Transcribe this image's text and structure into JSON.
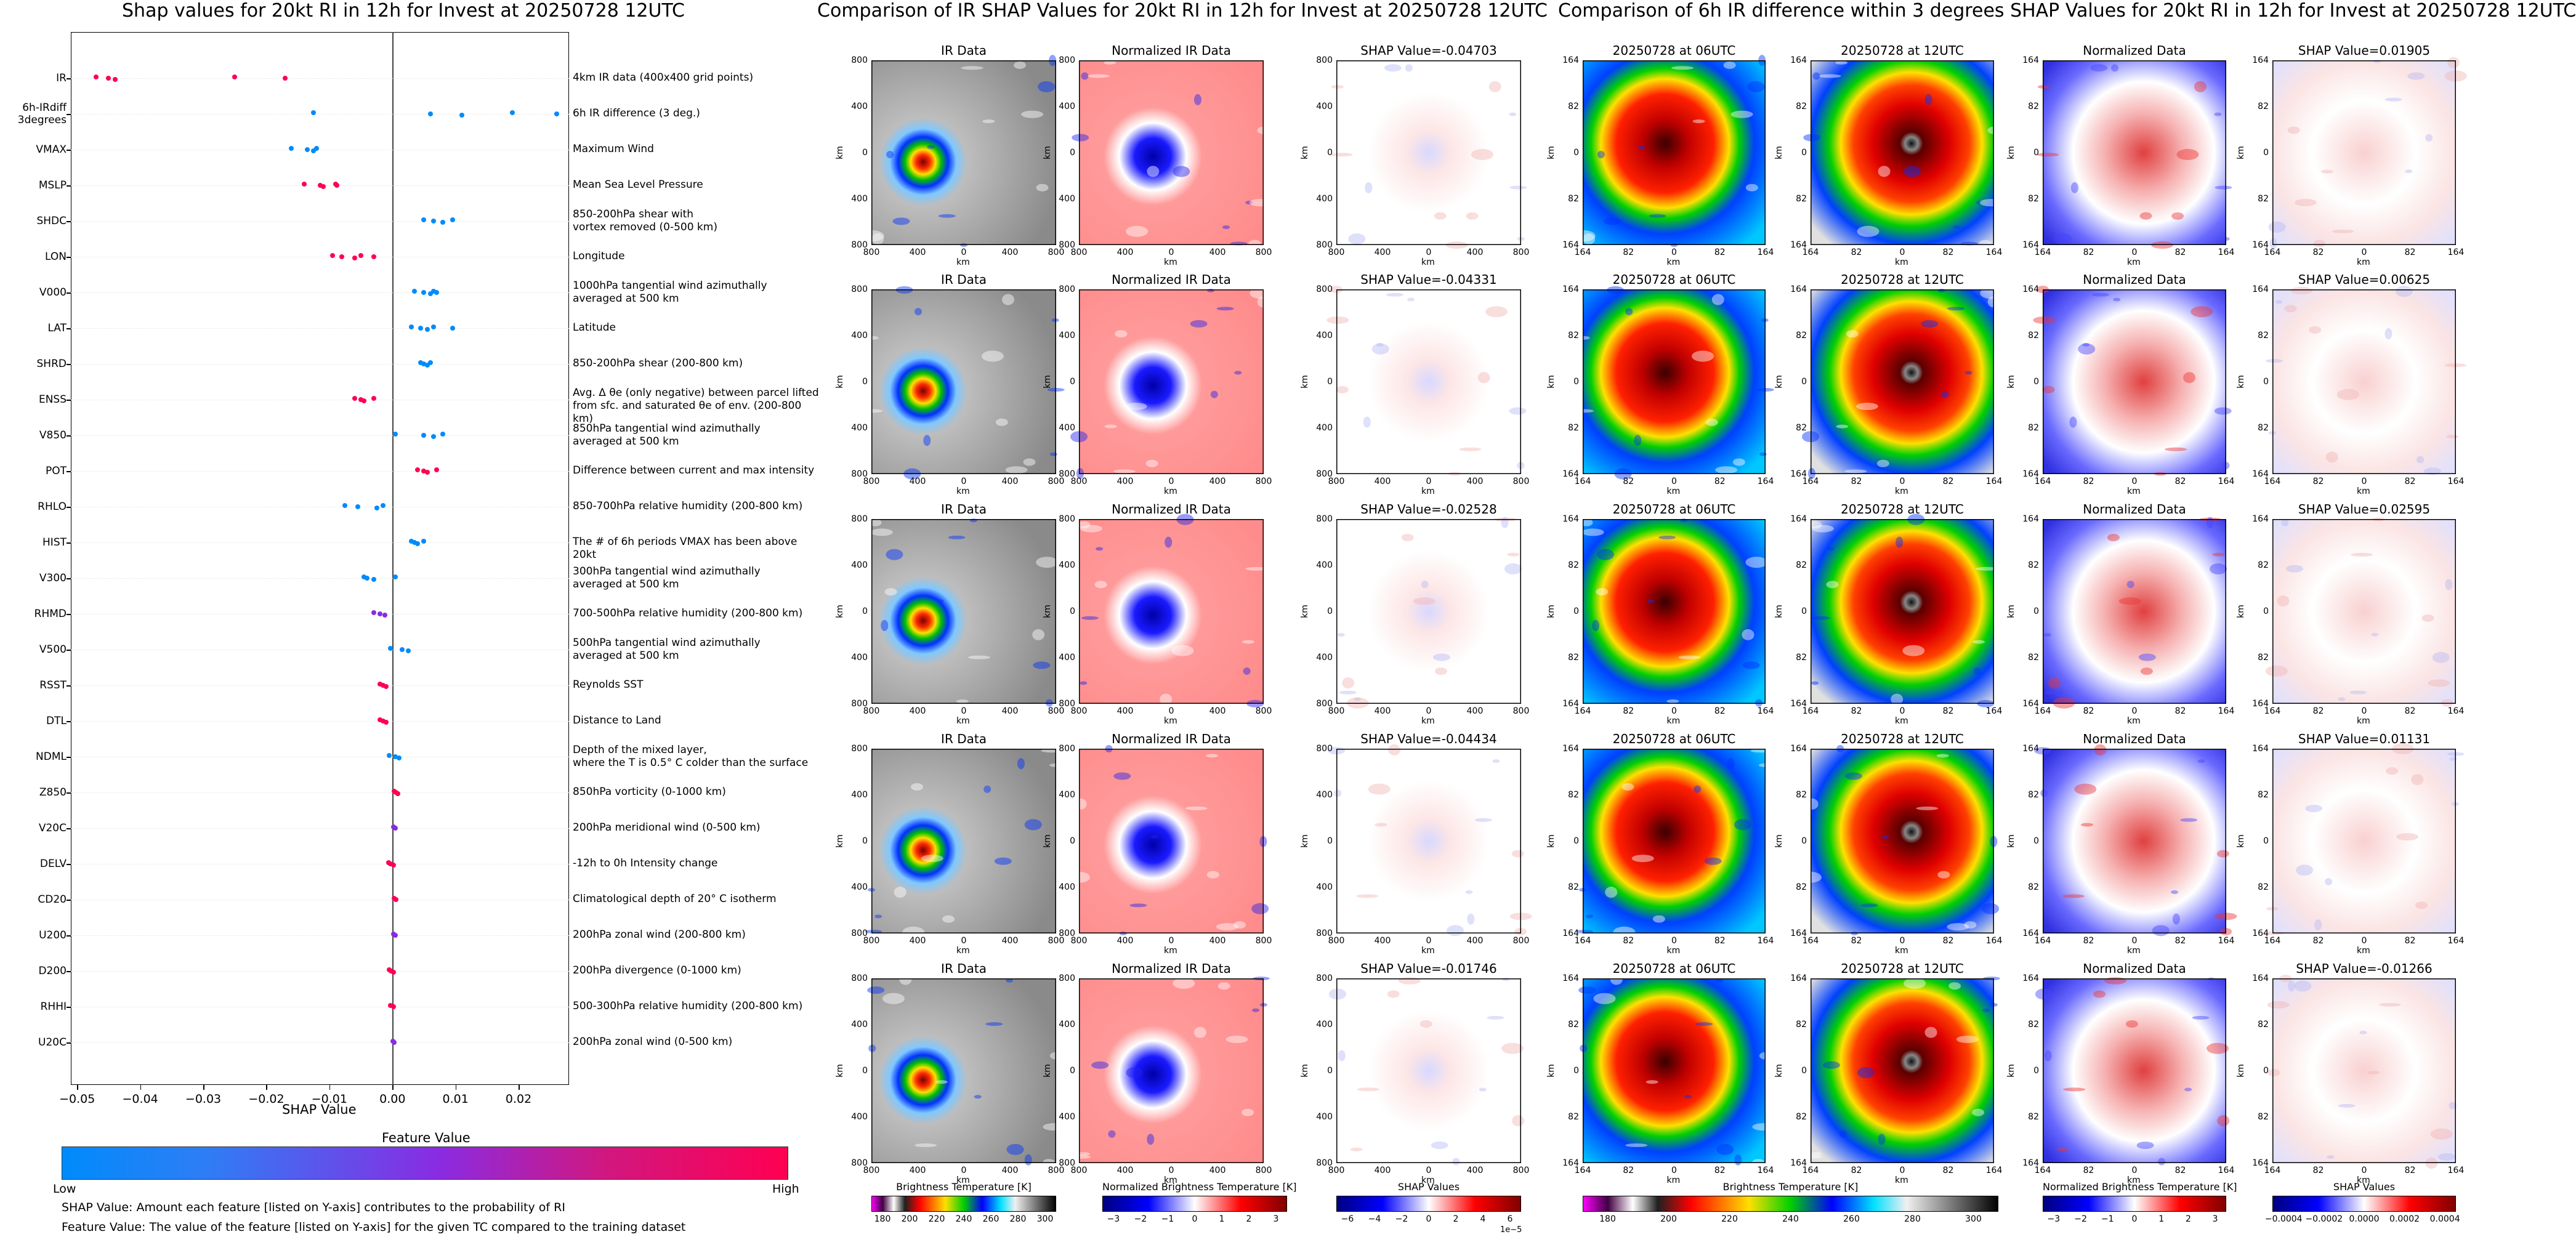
{
  "left": {
    "title": "Shap values for 20kt RI in 12h for Invest at 20250728 12UTC",
    "xlabel": "SHAP Value",
    "colorbar_title": "Feature Value",
    "colorbar_low": "Low",
    "colorbar_high": "High",
    "note1": "SHAP Value: Amount each feature [listed on Y-axis] contributes to the probability of RI",
    "note2": "Feature Value: The value of the feature [listed on Y-axis] for the given TC compared to the training dataset",
    "colors": {
      "low": "#008bfb",
      "mid": "#8a2be2",
      "high": "#ff0052"
    }
  },
  "chart_data": [
    {
      "type": "scatter",
      "title": "Shap values for 20kt RI in 12h for Invest at 20250728 12UTC",
      "xlabel": "SHAP Value",
      "xlim": [
        -0.051,
        0.028
      ],
      "xticks": [
        "−0.05",
        "−0.04",
        "−0.03",
        "−0.02",
        "−0.01",
        "0.00",
        "0.01",
        "0.02"
      ],
      "xtick_values": [
        -0.05,
        -0.04,
        -0.03,
        -0.02,
        -0.01,
        0.0,
        0.01,
        0.02
      ],
      "features": [
        {
          "name": "IR",
          "desc": "4km IR data (400x400 grid points)",
          "values": [
            -0.047,
            -0.045,
            -0.044,
            -0.025,
            -0.017
          ],
          "fv": [
            1,
            1,
            1,
            1,
            1
          ]
        },
        {
          "name": "6h-IRdiff\n3degrees",
          "desc": "6h IR difference (3 deg.)",
          "values": [
            -0.0125,
            0.006,
            0.011,
            0.019,
            0.026
          ],
          "fv": [
            0,
            0,
            0,
            0,
            0
          ]
        },
        {
          "name": "VMAX",
          "desc": "Maximum Wind",
          "values": [
            -0.016,
            -0.0135,
            -0.0125,
            -0.012
          ],
          "fv": [
            0,
            0,
            0,
            0
          ]
        },
        {
          "name": "MSLP",
          "desc": "Mean Sea Level Pressure",
          "values": [
            -0.014,
            -0.0115,
            -0.011,
            -0.009,
            -0.0088
          ],
          "fv": [
            1,
            1,
            1,
            1,
            1
          ]
        },
        {
          "name": "SHDC",
          "desc": "850-200hPa shear with\nvortex removed (0-500 km)",
          "values": [
            0.005,
            0.0065,
            0.008,
            0.0095
          ],
          "fv": [
            0,
            0,
            0,
            0
          ]
        },
        {
          "name": "LON",
          "desc": "Longitude",
          "values": [
            -0.0095,
            -0.008,
            -0.006,
            -0.005,
            -0.003
          ],
          "fv": [
            1,
            1,
            1,
            1,
            1
          ]
        },
        {
          "name": "V000",
          "desc": "1000hPa tangential wind azimuthally\naveraged at 500 km",
          "values": [
            0.0035,
            0.005,
            0.006,
            0.0065,
            0.007
          ],
          "fv": [
            0,
            0,
            0,
            0,
            0
          ]
        },
        {
          "name": "LAT",
          "desc": "Latitude",
          "values": [
            0.003,
            0.0045,
            0.0055,
            0.0065,
            0.0095
          ],
          "fv": [
            0,
            0,
            0,
            0,
            0
          ]
        },
        {
          "name": "SHRD",
          "desc": "850-200hPa shear (200-800 km)",
          "values": [
            0.0045,
            0.005,
            0.0055,
            0.006
          ],
          "fv": [
            0,
            0,
            0,
            0
          ]
        },
        {
          "name": "ENSS",
          "desc": "Avg. Δ θe (only negative) between parcel lifted\nfrom sfc. and saturated θe of env. (200-800 km)",
          "values": [
            -0.006,
            -0.005,
            -0.0045,
            -0.003
          ],
          "fv": [
            1,
            1,
            1,
            1
          ]
        },
        {
          "name": "V850",
          "desc": "850hPa tangential wind azimuthally\naveraged at 500 km",
          "values": [
            0.0005,
            0.005,
            0.0065,
            0.008
          ],
          "fv": [
            0,
            0,
            0,
            0
          ]
        },
        {
          "name": "POT",
          "desc": "Difference between current and max intensity",
          "values": [
            0.004,
            0.005,
            0.0055,
            0.007
          ],
          "fv": [
            1,
            1,
            1,
            1
          ]
        },
        {
          "name": "RHLO",
          "desc": "850-700hPa relative humidity (200-800 km)",
          "values": [
            -0.0075,
            -0.0055,
            -0.0025,
            -0.0015
          ],
          "fv": [
            0,
            0,
            0,
            0
          ]
        },
        {
          "name": "HIST",
          "desc": "The # of 6h periods VMAX has been above 20kt",
          "values": [
            0.003,
            0.0035,
            0.004,
            0.005
          ],
          "fv": [
            0,
            0,
            0,
            0
          ]
        },
        {
          "name": "V300",
          "desc": "300hPa tangential wind azimuthally\naveraged at 500 km",
          "values": [
            -0.0045,
            -0.004,
            -0.003,
            0.0005
          ],
          "fv": [
            0,
            0,
            0,
            0
          ]
        },
        {
          "name": "RHMD",
          "desc": "700-500hPa relative humidity (200-800 km)",
          "values": [
            -0.003,
            -0.002,
            -0.0012
          ],
          "fv": [
            0.5,
            0.5,
            0.5
          ]
        },
        {
          "name": "V500",
          "desc": "500hPa tangential wind azimuthally\naveraged at 500 km",
          "values": [
            -0.0003,
            0.0015,
            0.0025
          ],
          "fv": [
            0,
            0,
            0
          ]
        },
        {
          "name": "RSST",
          "desc": "Reynolds SST",
          "values": [
            -0.002,
            -0.0015,
            -0.001
          ],
          "fv": [
            1,
            1,
            1
          ]
        },
        {
          "name": "DTL",
          "desc": "Distance to Land",
          "values": [
            -0.002,
            -0.0015,
            -0.001
          ],
          "fv": [
            1,
            1,
            1
          ]
        },
        {
          "name": "NDML",
          "desc": "Depth of the mixed layer,\nwhere the T is 0.5° C colder than the surface",
          "values": [
            -0.0005,
            0.0005,
            0.001
          ],
          "fv": [
            0,
            0,
            0
          ]
        },
        {
          "name": "Z850",
          "desc": "850hPa vorticity (0-1000 km)",
          "values": [
            0.0003,
            0.0006,
            0.0009
          ],
          "fv": [
            1,
            1,
            1
          ]
        },
        {
          "name": "V20C",
          "desc": "200hPa meridional wind (0-500 km)",
          "values": [
            0.0002,
            0.0005
          ],
          "fv": [
            0.5,
            0.5
          ]
        },
        {
          "name": "DELV",
          "desc": "-12h to 0h Intensity change",
          "values": [
            -0.0006,
            -0.0003,
            0.0002
          ],
          "fv": [
            1,
            1,
            1
          ]
        },
        {
          "name": "CD20",
          "desc": "Climatological depth of 20° C isotherm",
          "values": [
            0.0003,
            0.0006
          ],
          "fv": [
            1,
            1
          ]
        },
        {
          "name": "U200",
          "desc": "200hPa zonal wind (200-800 km)",
          "values": [
            0.0002,
            0.0005
          ],
          "fv": [
            0.5,
            0.5
          ]
        },
        {
          "name": "D200",
          "desc": "200hPa divergence (0-1000 km)",
          "values": [
            -0.0005,
            -0.0002,
            0.0002
          ],
          "fv": [
            1,
            1,
            1
          ]
        },
        {
          "name": "RHHI",
          "desc": "500-300hPa relative humidity (200-800 km)",
          "values": [
            -0.0003,
            0.0002
          ],
          "fv": [
            1,
            1
          ]
        },
        {
          "name": "U20C",
          "desc": "200hPa zonal wind (0-500 km)",
          "values": [
            0.0001,
            0.0003
          ],
          "fv": [
            0.5,
            0.5
          ]
        }
      ]
    },
    {
      "type": "heatmap",
      "title": "Comparison of IR SHAP Values for 20kt RI in 12h for Invest at 20250728 12UTC",
      "columns": [
        "IR Data",
        "Normalized IR Data",
        "SHAP Values"
      ],
      "shap_values": [
        "SHAP Value=-0.04703",
        "SHAP Value=-0.04331",
        "SHAP Value=-0.02528",
        "SHAP Value=-0.04434",
        "SHAP Value=-0.01746"
      ],
      "xlabel": "km",
      "ylabel": "km",
      "xticks": [
        "800",
        "400",
        "0",
        "400",
        "800"
      ],
      "yticks": [
        "800",
        "400",
        "0",
        "400",
        "800"
      ],
      "colorbars": [
        {
          "title": "Brightness Temperature [K]",
          "ticks": [
            "180",
            "200",
            "220",
            "240",
            "260",
            "280",
            "300"
          ]
        },
        {
          "title": "Normalized Brightness Temperature [K]",
          "ticks": [
            "−3",
            "−2",
            "−1",
            "0",
            "1",
            "2",
            "3"
          ]
        },
        {
          "title": "SHAP Values",
          "ticks": [
            "−6",
            "−4",
            "−2",
            "0",
            "2",
            "4",
            "6"
          ],
          "offset": "1e−5"
        }
      ]
    },
    {
      "type": "heatmap",
      "title": "Comparison of 6h IR difference within 3 degrees SHAP Values for 20kt RI in 12h for Invest at 20250728 12UTC",
      "columns": [
        "20250728 at 06UTC",
        "20250728 at 12UTC",
        "Normalized Data"
      ],
      "shap_values": [
        "SHAP Value=0.01905",
        "SHAP Value=0.00625",
        "SHAP Value=0.02595",
        "SHAP Value=0.01131",
        "SHAP Value=-0.01266"
      ],
      "xlabel": "km",
      "ylabel": "km",
      "xticks": [
        "164",
        "82",
        "0",
        "82",
        "164"
      ],
      "yticks": [
        "164",
        "82",
        "0",
        "82",
        "164"
      ],
      "colorbars": [
        {
          "title": "Brightness Temperature [K]",
          "ticks": [
            "180",
            "200",
            "220",
            "240",
            "260",
            "280",
            "300"
          ]
        },
        {
          "title": "Normalized Brightness Temperature [K]",
          "ticks": [
            "−3",
            "−2",
            "−1",
            "0",
            "1",
            "2",
            "3"
          ]
        },
        {
          "title": "SHAP Values",
          "ticks": [
            "−0.0004",
            "−0.0002",
            "0.0000",
            "0.0002",
            "0.0004"
          ]
        }
      ]
    }
  ]
}
